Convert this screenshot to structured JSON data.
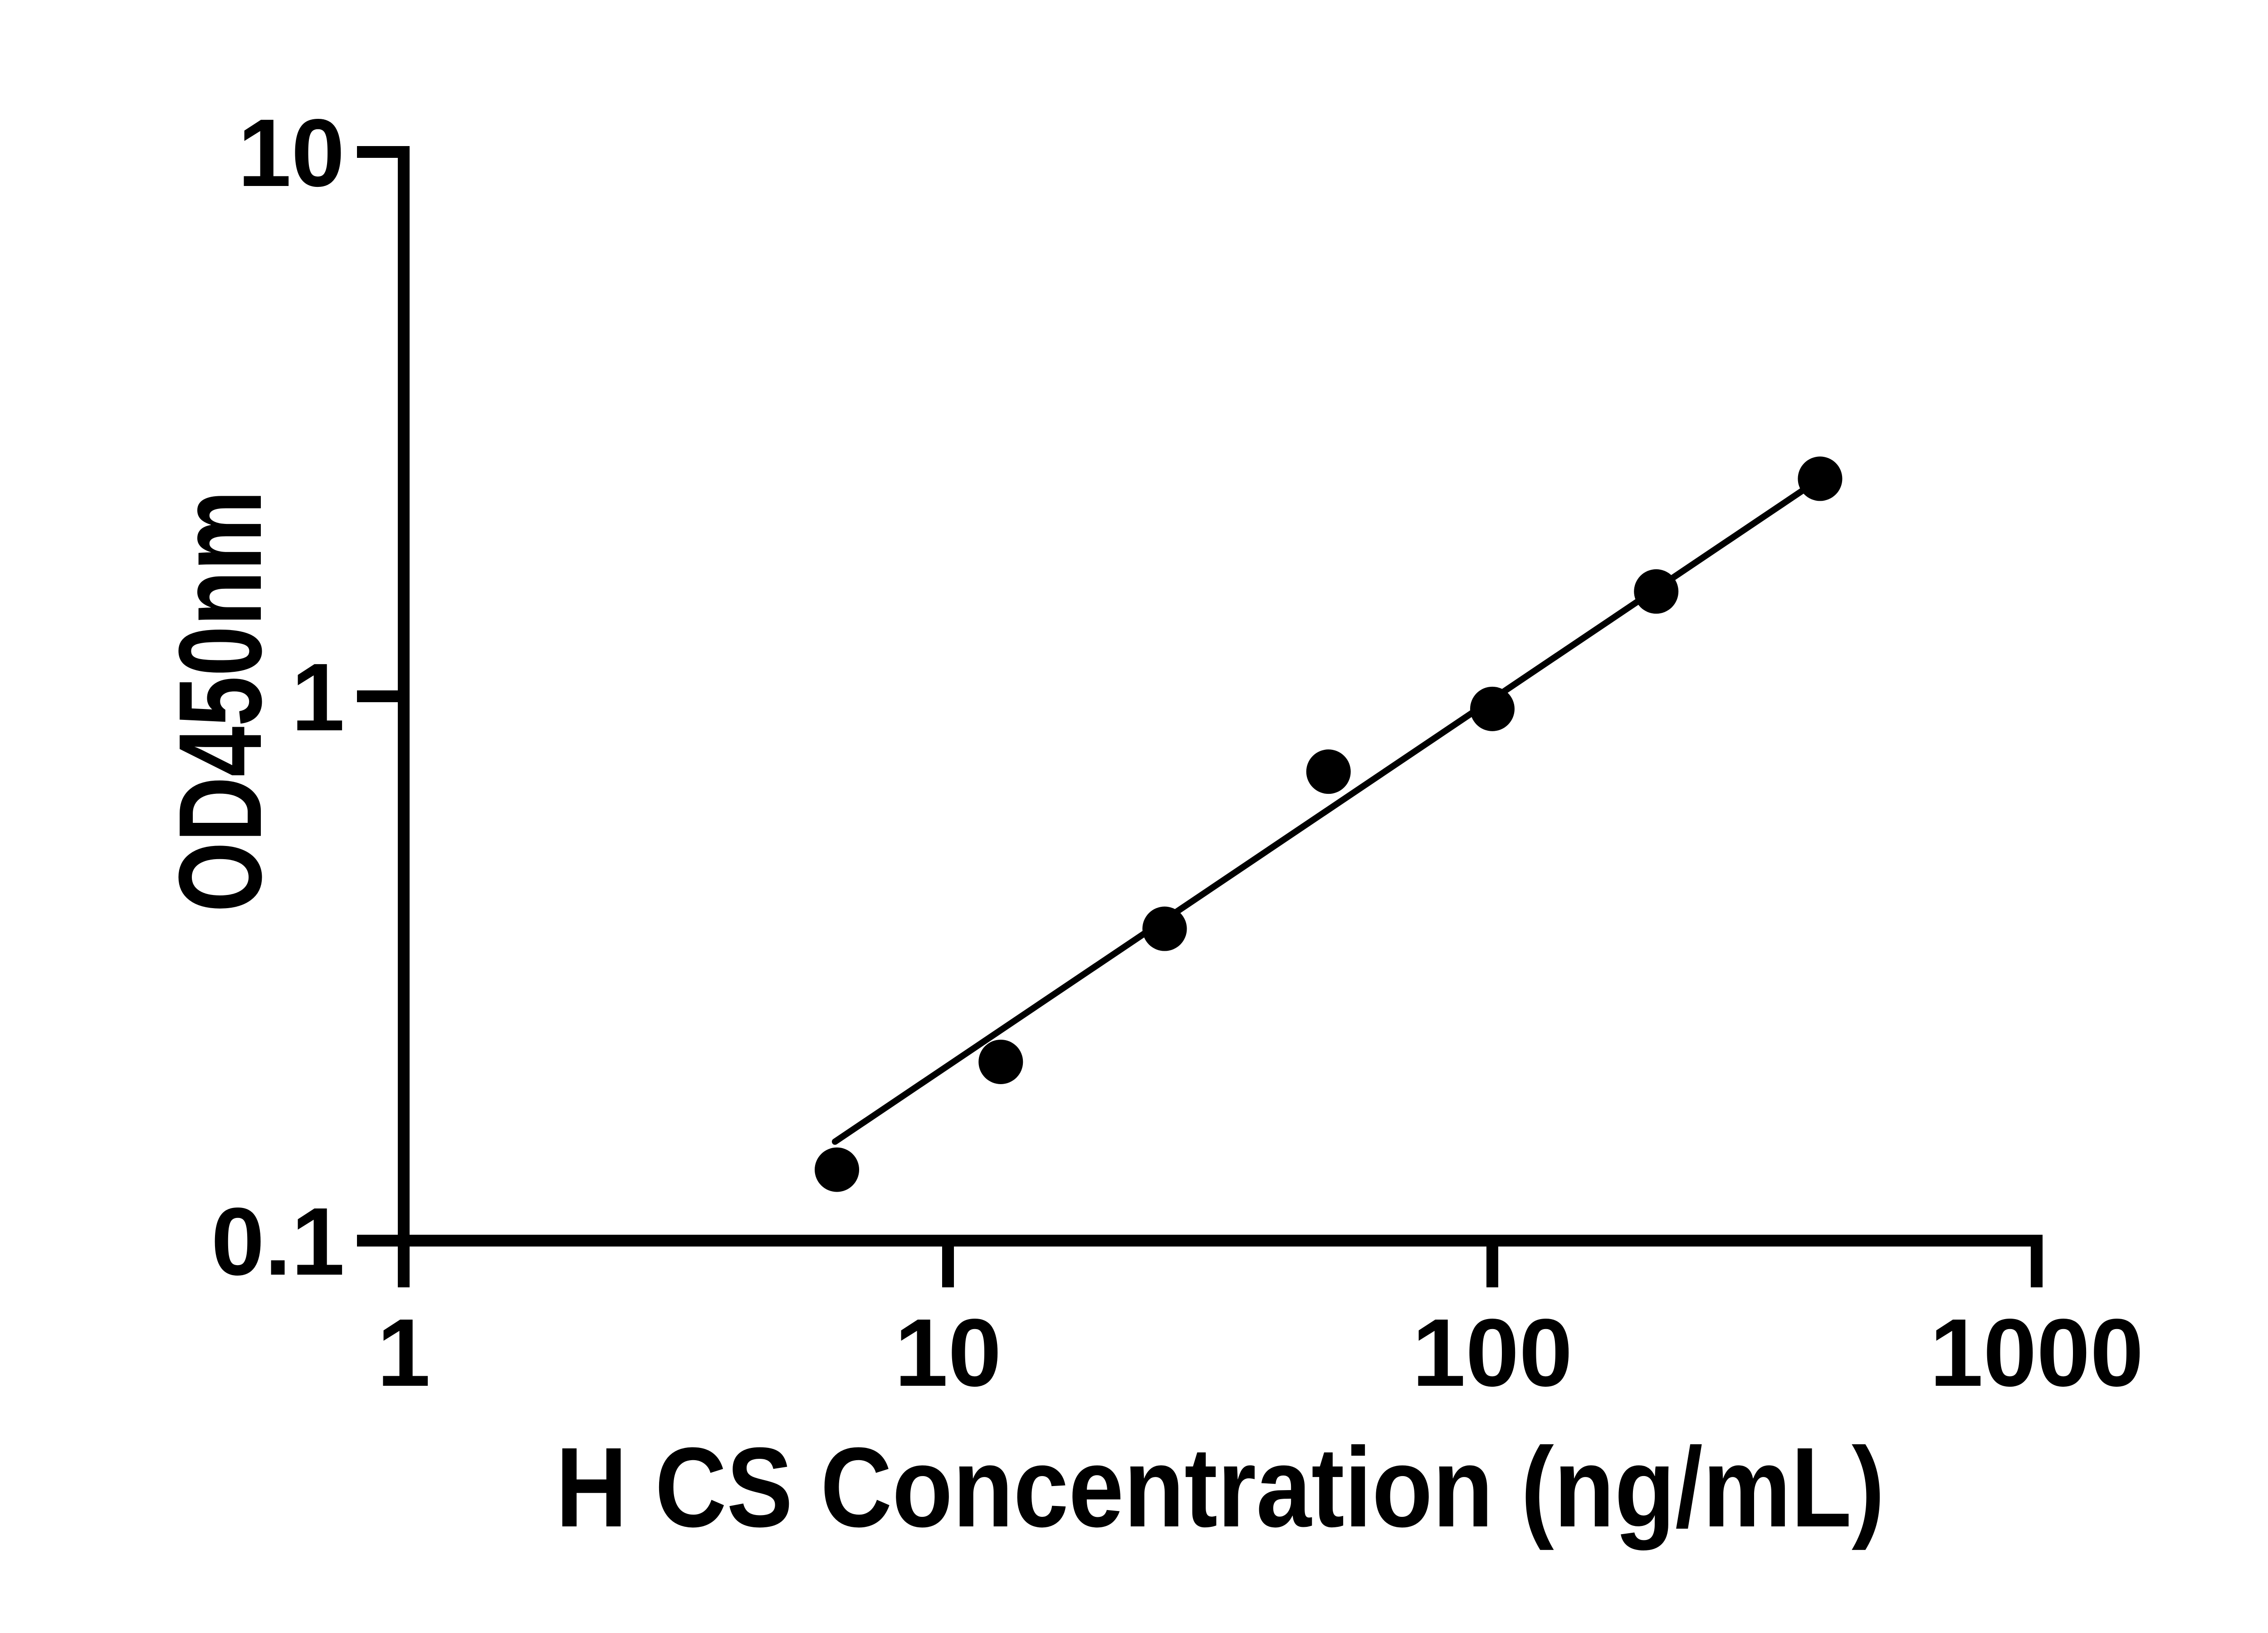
{
  "figure": {
    "background_color": "#ffffff",
    "ink_color": "#000000"
  },
  "chart_data": {
    "type": "scatter",
    "title": "",
    "xlabel": "H CS Concentration (ng/mL)",
    "ylabel": "OD450nm",
    "x_scale": "log10",
    "y_scale": "log10",
    "xlim": [
      1,
      1000
    ],
    "ylim": [
      0.1,
      10
    ],
    "grid": false,
    "legend_position": "none",
    "x_ticks": [
      1,
      10,
      100,
      1000
    ],
    "x_tick_labels": [
      "1",
      "10",
      "100",
      "1000"
    ],
    "y_ticks": [
      10,
      1,
      0.1
    ],
    "y_tick_labels": [
      "10",
      "1",
      "0.1"
    ],
    "points": [
      {
        "x": 6.25,
        "y": 0.135
      },
      {
        "x": 12.5,
        "y": 0.213
      },
      {
        "x": 25,
        "y": 0.374
      },
      {
        "x": 50,
        "y": 0.727
      },
      {
        "x": 100,
        "y": 0.948
      },
      {
        "x": 200,
        "y": 1.558
      },
      {
        "x": 400,
        "y": 2.51
      }
    ],
    "trendline": {
      "x1": 6.2,
      "y1": 0.152,
      "x2": 400,
      "y2": 2.51
    },
    "marker": {
      "shape": "circle",
      "color": "#000000",
      "radius_px": 49
    },
    "line_color": "#000000"
  }
}
